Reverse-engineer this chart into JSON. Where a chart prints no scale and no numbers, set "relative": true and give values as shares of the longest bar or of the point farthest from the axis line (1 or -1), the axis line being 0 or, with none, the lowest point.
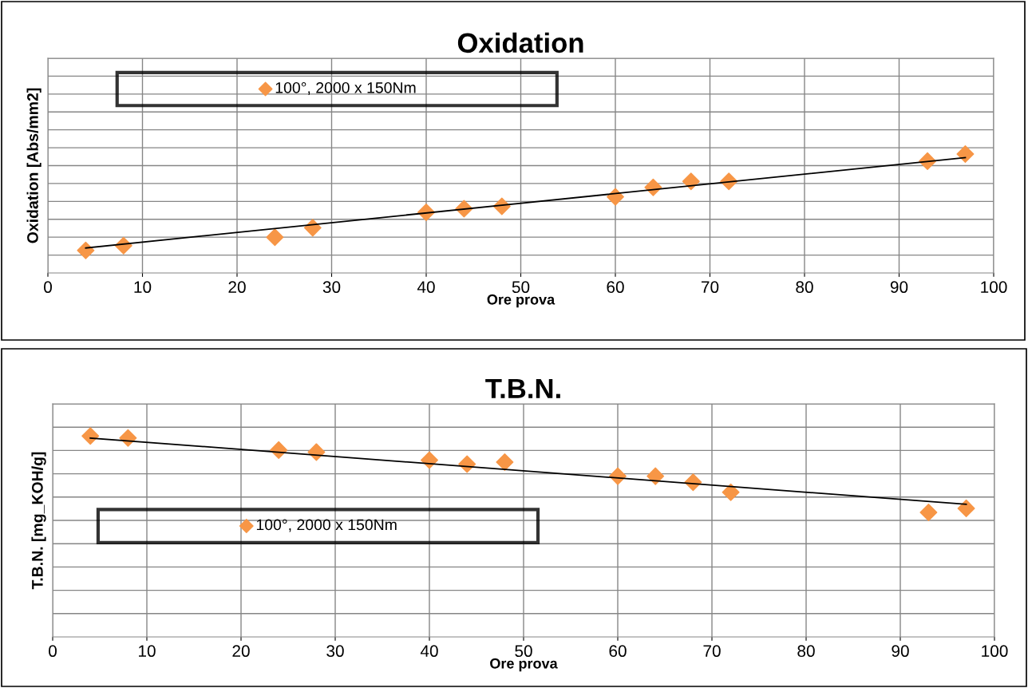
{
  "chart_data": [
    {
      "type": "scatter",
      "title": "Oxidation",
      "xlabel": "Ore prova",
      "ylabel": "Oxidation [Abs/mm2]",
      "relative": true,
      "xlim": [
        0,
        100
      ],
      "xticks": [
        0,
        10,
        20,
        30,
        40,
        50,
        60,
        70,
        80,
        90,
        100
      ],
      "grid": true,
      "legend": "top left",
      "marker": "diamond",
      "series": [
        {
          "name": "100°, 2000 x 150Nm",
          "color": "#f79646",
          "x": [
            4,
            8,
            24,
            28,
            40,
            44,
            48,
            60,
            64,
            68,
            72,
            93,
            97
          ],
          "values": [
            0.19,
            0.23,
            0.3,
            0.38,
            0.51,
            0.54,
            0.56,
            0.64,
            0.72,
            0.77,
            0.77,
            0.94,
            1.0
          ]
        },
        {
          "type": "line",
          "color": "#000000",
          "marker": "none",
          "x": [
            4,
            97
          ],
          "values": [
            0.21,
            0.97
          ]
        }
      ]
    },
    {
      "type": "scatter",
      "title": "T.B.N.",
      "xlabel": "Ore prova",
      "ylabel": "T.B.N. [mg_KOH/g]",
      "relative": true,
      "xlim": [
        0,
        100
      ],
      "xticks": [
        0,
        10,
        20,
        30,
        40,
        50,
        60,
        70,
        80,
        90,
        100
      ],
      "grid": true,
      "legend": "left",
      "marker": "diamond",
      "series": [
        {
          "name": "100°, 2000 x 150Nm",
          "color": "#f79646",
          "x": [
            4,
            8,
            24,
            28,
            40,
            44,
            48,
            60,
            64,
            68,
            72,
            93,
            97
          ],
          "values": [
            1.0,
            0.99,
            0.93,
            0.92,
            0.88,
            0.86,
            0.87,
            0.8,
            0.8,
            0.77,
            0.72,
            0.62,
            0.64
          ]
        },
        {
          "type": "line",
          "color": "#000000",
          "marker": "none",
          "x": [
            4,
            97
          ],
          "values": [
            0.99,
            0.66
          ]
        }
      ]
    }
  ]
}
